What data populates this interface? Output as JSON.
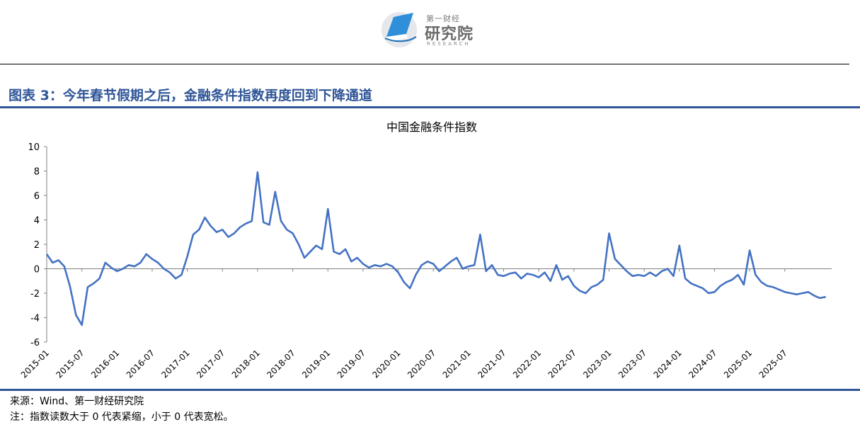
{
  "header": {
    "logo_small": "第一财经",
    "logo_main": "研究院",
    "logo_en": "RESEARCH"
  },
  "figure_title": "图表 3：今年春节假期之后，金融条件指数再度回到下降通道",
  "source": "来源：Wind、第一财经研究院",
  "note": "注：指数读数大于 0 代表紧缩，小于 0 代表宽松。",
  "colors": {
    "line": "#4472c4",
    "accent": "#2f5597"
  },
  "chart_data": {
    "type": "line",
    "title": "中国金融条件指数",
    "xlabel": "",
    "ylabel": "",
    "ylim": [
      -6,
      10
    ],
    "yticks": [
      -6,
      -4,
      -2,
      0,
      2,
      4,
      6,
      8,
      10
    ],
    "xlim": [
      "2015-01",
      "2026-03"
    ],
    "xticks": [
      "2015-01",
      "2015-07",
      "2016-01",
      "2016-07",
      "2017-01",
      "2017-07",
      "2018-01",
      "2018-07",
      "2019-01",
      "2019-07",
      "2020-01",
      "2020-07",
      "2021-01",
      "2021-07",
      "2022-01",
      "2022-07",
      "2023-01",
      "2023-07",
      "2024-01",
      "2024-07",
      "2025-01",
      "2025-07"
    ],
    "grid": false,
    "legend": "none",
    "series": [
      {
        "x": [
          "2015-01",
          "2015-02",
          "2015-03",
          "2015-04",
          "2015-05",
          "2015-06",
          "2015-07",
          "2015-08",
          "2015-09",
          "2015-10",
          "2015-11",
          "2015-12",
          "2016-01",
          "2016-02",
          "2016-03",
          "2016-04",
          "2016-05",
          "2016-06",
          "2016-07",
          "2016-08",
          "2016-09",
          "2016-10",
          "2016-11",
          "2016-12",
          "2017-01",
          "2017-02",
          "2017-03",
          "2017-04",
          "2017-05",
          "2017-06",
          "2017-07",
          "2017-08",
          "2017-09",
          "2017-10",
          "2017-11",
          "2017-12",
          "2018-01",
          "2018-02",
          "2018-03",
          "2018-04",
          "2018-05",
          "2018-06",
          "2018-07",
          "2018-08",
          "2018-09",
          "2018-10",
          "2018-11",
          "2018-12",
          "2019-01",
          "2019-02",
          "2019-03",
          "2019-04",
          "2019-05",
          "2019-06",
          "2019-07",
          "2019-08",
          "2019-09",
          "2019-10",
          "2019-11",
          "2019-12",
          "2020-01",
          "2020-02",
          "2020-03",
          "2020-04",
          "2020-05",
          "2020-06",
          "2020-07",
          "2020-08",
          "2020-09",
          "2020-10",
          "2020-11",
          "2020-12",
          "2021-01",
          "2021-02",
          "2021-03",
          "2021-04",
          "2021-05",
          "2021-06",
          "2021-07",
          "2021-08",
          "2021-09",
          "2021-10",
          "2021-11",
          "2021-12",
          "2022-01",
          "2022-02",
          "2022-03",
          "2022-04",
          "2022-05",
          "2022-06",
          "2022-07",
          "2022-08",
          "2022-09",
          "2022-10",
          "2022-11",
          "2022-12",
          "2023-01",
          "2023-02",
          "2023-03",
          "2023-04",
          "2023-05",
          "2023-06",
          "2023-07",
          "2023-08",
          "2023-09",
          "2023-10",
          "2023-11",
          "2023-12",
          "2024-01",
          "2024-02",
          "2024-03",
          "2024-04",
          "2024-05",
          "2024-06",
          "2024-07",
          "2024-08",
          "2024-09",
          "2024-10",
          "2024-11",
          "2024-12",
          "2025-01",
          "2025-02",
          "2025-03",
          "2025-04",
          "2025-05",
          "2025-06",
          "2025-07",
          "2025-08",
          "2025-09",
          "2025-10",
          "2025-11",
          "2025-12",
          "2026-01",
          "2026-02"
        ],
        "values": [
          1.2,
          0.5,
          0.7,
          0.2,
          -1.5,
          -3.8,
          -4.6,
          -1.5,
          -1.2,
          -0.8,
          0.5,
          0.1,
          -0.2,
          0.0,
          0.3,
          0.2,
          0.5,
          1.2,
          0.8,
          0.5,
          0.0,
          -0.3,
          -0.8,
          -0.5,
          1.0,
          2.8,
          3.2,
          4.2,
          3.5,
          3.0,
          3.2,
          2.6,
          2.9,
          3.4,
          3.7,
          3.9,
          7.9,
          3.8,
          3.6,
          6.3,
          3.9,
          3.2,
          2.9,
          2.0,
          0.9,
          1.4,
          1.9,
          1.6,
          4.9,
          1.4,
          1.2,
          1.6,
          0.6,
          0.9,
          0.4,
          0.1,
          0.3,
          0.2,
          0.4,
          0.2,
          -0.3,
          -1.1,
          -1.6,
          -0.5,
          0.3,
          0.6,
          0.4,
          -0.2,
          0.2,
          0.6,
          0.9,
          0.0,
          0.2,
          0.3,
          2.8,
          -0.2,
          0.3,
          -0.5,
          -0.6,
          -0.4,
          -0.3,
          -0.8,
          -0.4,
          -0.5,
          -0.7,
          -0.3,
          -1.0,
          0.3,
          -0.9,
          -0.6,
          -1.4,
          -1.8,
          -2.0,
          -1.5,
          -1.3,
          -0.9,
          2.9,
          0.8,
          0.3,
          -0.2,
          -0.6,
          -0.5,
          -0.6,
          -0.3,
          -0.6,
          -0.2,
          0.0,
          -0.6,
          1.9,
          -0.8,
          -1.2,
          -1.4,
          -1.6,
          -2.0,
          -1.9,
          -1.4,
          -1.1,
          -0.9,
          -0.5,
          -1.3,
          1.5,
          -0.5,
          -1.1,
          -1.4,
          -1.5,
          -1.7,
          -1.9,
          -2.0,
          -2.1,
          -2.0,
          -1.9,
          -2.2,
          -2.4,
          -2.3
        ]
      }
    ]
  }
}
